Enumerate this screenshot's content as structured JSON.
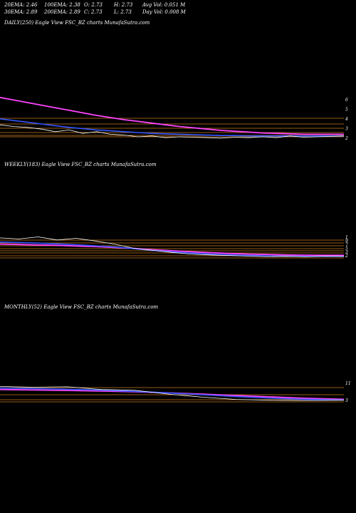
{
  "header": {
    "ema20": "20EMA: 2.46",
    "ema30": "30EMA: 2.89",
    "ema100": "100EMA: 2.38",
    "ema200": "200EMA: 2.89",
    "open": "O: 2.73",
    "close": "C: 2.73",
    "high": "H: 2.73",
    "low": "L: 2.73",
    "avg_vol": "Avg Vol: 0.051  M",
    "day_vol": "Day Vol: 0.008  M"
  },
  "panels": {
    "daily": {
      "title": "DAILY(250) Eagle   View  FSC_BZ charts MunafaSutra.com"
    },
    "weekly": {
      "title": "WEEKLY(183) Eagle   View  FSC_BZ charts MunafaSutra.com"
    },
    "monthly": {
      "title": "MONTHLY(52) Eagle   View  FSC_BZ charts MunafaSutra.com"
    }
  },
  "colors": {
    "price": "#ffffff",
    "ema_short": "#3355ff",
    "ema_long": "#ff44ff",
    "levels": "#c87a1e",
    "background": "#000000"
  },
  "chart_data": [
    {
      "type": "line",
      "name": "daily",
      "y_ticks": [
        "6",
        "5",
        "4",
        "3",
        "2"
      ],
      "ylim": [
        1.5,
        6.5
      ],
      "x": [
        0,
        10,
        20,
        30,
        40,
        50,
        60,
        70,
        80,
        90,
        100,
        110,
        120,
        130,
        140,
        150,
        160,
        170,
        180,
        190,
        200,
        210,
        220,
        230,
        240,
        249
      ],
      "series": [
        {
          "values": [
            3.4,
            3.2,
            3.1,
            2.9,
            2.6,
            2.8,
            2.4,
            2.6,
            2.3,
            2.2,
            2.0,
            2.1,
            1.9,
            2.0,
            1.95,
            1.9,
            1.85,
            1.95,
            1.9,
            2.0,
            1.9,
            2.1,
            1.95,
            2.0,
            2.05,
            2.1
          ]
        },
        {
          "values": [
            4.1,
            3.9,
            3.7,
            3.5,
            3.3,
            3.1,
            2.95,
            2.8,
            2.7,
            2.6,
            2.5,
            2.4,
            2.35,
            2.3,
            2.25,
            2.2,
            2.15,
            2.15,
            2.1,
            2.1,
            2.1,
            2.1,
            2.1,
            2.1,
            2.1,
            2.1
          ]
        },
        {
          "values": [
            6.6,
            6.3,
            6.0,
            5.7,
            5.4,
            5.1,
            4.8,
            4.5,
            4.25,
            4.0,
            3.8,
            3.6,
            3.4,
            3.2,
            3.05,
            2.9,
            2.75,
            2.65,
            2.55,
            2.45,
            2.4,
            2.35,
            2.3,
            2.3,
            2.3,
            2.3
          ]
        }
      ]
    },
    {
      "type": "line",
      "name": "weekly",
      "y_ticks": [
        "1",
        "9",
        "7",
        "5",
        "3",
        "2"
      ],
      "ylim": [
        1,
        12
      ],
      "x": [
        0,
        10,
        20,
        30,
        40,
        50,
        60,
        70,
        80,
        90,
        100,
        110,
        120,
        130,
        140,
        150,
        160,
        170,
        180
      ],
      "series": [
        {
          "values": [
            11,
            10.5,
            11.5,
            10,
            10.8,
            9.5,
            8,
            6,
            5,
            4,
            3.2,
            2.8,
            2.5,
            2.2,
            2.0,
            2.1,
            1.9,
            2.2,
            2.1
          ]
        },
        {
          "values": [
            9,
            8.8,
            8.5,
            8.1,
            7.7,
            7.2,
            6.6,
            5.8,
            5.0,
            4.3,
            3.7,
            3.2,
            2.8,
            2.5,
            2.3,
            2.2,
            2.1,
            2.1,
            2.1
          ]
        },
        {
          "values": [
            8,
            7.8,
            7.6,
            7.4,
            7.1,
            6.8,
            6.4,
            5.9,
            5.3,
            4.8,
            4.3,
            3.9,
            3.5,
            3.2,
            3.0,
            2.8,
            2.7,
            2.6,
            2.6
          ]
        }
      ]
    },
    {
      "type": "line",
      "name": "monthly",
      "y_ticks": [
        "11",
        "3"
      ],
      "ylim": [
        1,
        15
      ],
      "x": [
        0,
        5,
        10,
        15,
        20,
        25,
        30,
        35,
        40,
        45,
        51
      ],
      "series": [
        {
          "values": [
            12,
            11.5,
            11.8,
            10,
            9.5,
            7,
            5,
            3.5,
            3,
            2.8,
            3
          ]
        },
        {
          "values": [
            11,
            10.6,
            10.2,
            9.6,
            8.8,
            7.8,
            6.6,
            5.4,
            4.4,
            3.6,
            3.2
          ]
        },
        {
          "values": [
            10,
            9.7,
            9.4,
            9.0,
            8.5,
            7.8,
            7.0,
            6.1,
            5.2,
            4.3,
            3.6
          ]
        }
      ]
    }
  ]
}
